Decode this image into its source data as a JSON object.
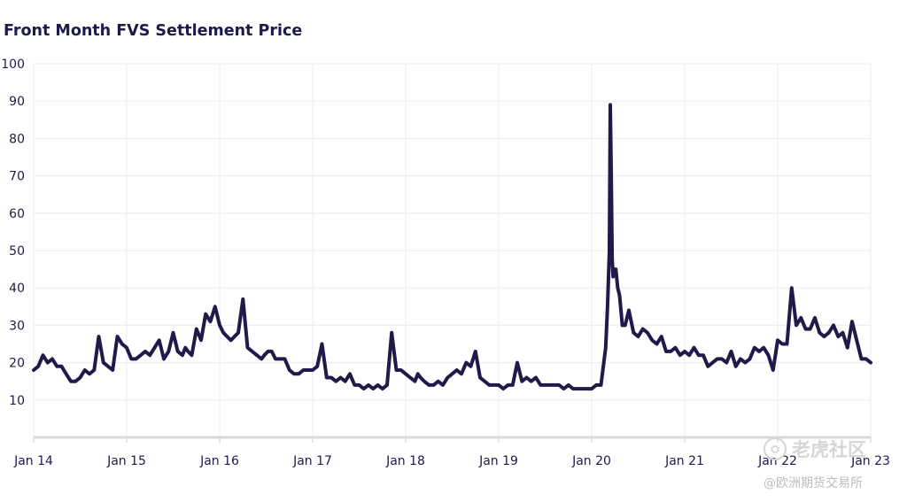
{
  "chart_data": {
    "type": "line",
    "title": "Front Month FVS Settlement Price",
    "xlabel": "",
    "ylabel": "",
    "ylim": [
      0,
      100
    ],
    "yticks": [
      10,
      20,
      30,
      40,
      50,
      60,
      70,
      80,
      90,
      100
    ],
    "xlim": [
      2014.0,
      2023.0
    ],
    "xticks": [
      {
        "label": "Jan 14",
        "value": 2014.0
      },
      {
        "label": "Jan 15",
        "value": 2015.0
      },
      {
        "label": "Jan 16",
        "value": 2016.0
      },
      {
        "label": "Jan 17",
        "value": 2017.0
      },
      {
        "label": "Jan 18",
        "value": 2018.0
      },
      {
        "label": "Jan 19",
        "value": 2019.0
      },
      {
        "label": "Jan 20",
        "value": 2020.0
      },
      {
        "label": "Jan 21",
        "value": 2021.0
      },
      {
        "label": "Jan 22",
        "value": 2022.0
      },
      {
        "label": "Jan 23",
        "value": 2023.0
      }
    ],
    "grid": true,
    "line_color": "#1f1a4a",
    "series": [
      {
        "name": "Front Month FVS Settlement Price",
        "x": [
          2014.0,
          2014.05,
          2014.1,
          2014.15,
          2014.2,
          2014.25,
          2014.3,
          2014.35,
          2014.4,
          2014.45,
          2014.5,
          2014.55,
          2014.6,
          2014.65,
          2014.7,
          2014.75,
          2014.8,
          2014.85,
          2014.9,
          2014.95,
          2015.0,
          2015.05,
          2015.1,
          2015.15,
          2015.2,
          2015.25,
          2015.3,
          2015.35,
          2015.4,
          2015.45,
          2015.5,
          2015.55,
          2015.6,
          2015.63,
          2015.66,
          2015.7,
          2015.75,
          2015.8,
          2015.85,
          2015.9,
          2015.95,
          2016.0,
          2016.04,
          2016.08,
          2016.12,
          2016.16,
          2016.2,
          2016.25,
          2016.3,
          2016.35,
          2016.4,
          2016.45,
          2016.48,
          2016.52,
          2016.56,
          2016.6,
          2016.65,
          2016.7,
          2016.75,
          2016.8,
          2016.85,
          2016.9,
          2016.95,
          2017.0,
          2017.05,
          2017.1,
          2017.15,
          2017.2,
          2017.25,
          2017.3,
          2017.35,
          2017.4,
          2017.45,
          2017.5,
          2017.55,
          2017.6,
          2017.65,
          2017.7,
          2017.75,
          2017.8,
          2017.85,
          2017.9,
          2017.95,
          2018.0,
          2018.05,
          2018.1,
          2018.13,
          2018.16,
          2018.2,
          2018.25,
          2018.3,
          2018.35,
          2018.4,
          2018.45,
          2018.5,
          2018.55,
          2018.6,
          2018.65,
          2018.7,
          2018.75,
          2018.8,
          2018.85,
          2018.9,
          2018.95,
          2019.0,
          2019.05,
          2019.1,
          2019.15,
          2019.2,
          2019.25,
          2019.3,
          2019.35,
          2019.4,
          2019.45,
          2019.5,
          2019.55,
          2019.6,
          2019.65,
          2019.7,
          2019.75,
          2019.8,
          2019.85,
          2019.9,
          2019.95,
          2020.0,
          2020.05,
          2020.1,
          2020.15,
          2020.17,
          2020.19,
          2020.2,
          2020.21,
          2020.22,
          2020.23,
          2020.24,
          2020.26,
          2020.28,
          2020.3,
          2020.33,
          2020.36,
          2020.4,
          2020.45,
          2020.5,
          2020.55,
          2020.6,
          2020.65,
          2020.7,
          2020.75,
          2020.8,
          2020.85,
          2020.9,
          2020.95,
          2021.0,
          2021.05,
          2021.1,
          2021.15,
          2021.2,
          2021.25,
          2021.3,
          2021.35,
          2021.4,
          2021.45,
          2021.5,
          2021.55,
          2021.6,
          2021.65,
          2021.7,
          2021.75,
          2021.8,
          2021.85,
          2021.9,
          2021.95,
          2022.0,
          2022.05,
          2022.1,
          2022.15,
          2022.2,
          2022.25,
          2022.3,
          2022.35,
          2022.4,
          2022.45,
          2022.5,
          2022.55,
          2022.6,
          2022.65,
          2022.7,
          2022.75,
          2022.8,
          2022.85,
          2022.9,
          2022.95,
          2023.0
        ],
        "values": [
          18,
          19,
          22,
          20,
          21,
          19,
          19,
          17,
          15,
          15,
          16,
          18,
          17,
          18,
          27,
          20,
          19,
          18,
          27,
          25,
          24,
          21,
          21,
          22,
          23,
          22,
          24,
          26,
          21,
          23,
          28,
          23,
          22,
          24,
          23,
          22,
          29,
          26,
          33,
          31,
          35,
          30,
          28,
          27,
          26,
          27,
          28,
          37,
          24,
          23,
          22,
          21,
          22,
          23,
          23,
          21,
          21,
          21,
          18,
          17,
          17,
          18,
          18,
          18,
          19,
          25,
          16,
          16,
          15,
          16,
          15,
          17,
          14,
          14,
          13,
          14,
          13,
          14,
          13,
          14,
          28,
          18,
          18,
          17,
          16,
          15,
          17,
          16,
          15,
          14,
          14,
          15,
          14,
          16,
          17,
          18,
          17,
          20,
          19,
          23,
          16,
          15,
          14,
          14,
          14,
          13,
          14,
          14,
          20,
          15,
          16,
          15,
          16,
          14,
          14,
          14,
          14,
          14,
          13,
          14,
          13,
          13,
          13,
          13,
          13,
          14,
          14,
          24,
          35,
          50,
          89,
          70,
          48,
          43,
          45,
          45,
          40,
          38,
          30,
          30,
          34,
          28,
          27,
          29,
          28,
          26,
          25,
          27,
          23,
          23,
          24,
          22,
          23,
          22,
          24,
          22,
          22,
          19,
          20,
          21,
          21,
          20,
          23,
          19,
          21,
          20,
          21,
          24,
          23,
          24,
          22,
          18,
          26,
          25,
          25,
          40,
          30,
          32,
          29,
          29,
          32,
          28,
          27,
          28,
          30,
          27,
          28,
          24,
          31,
          26,
          21,
          21,
          20
        ]
      }
    ]
  },
  "watermark": {
    "primary": "老虎社区",
    "secondary": "@欧洲期货交易所",
    "glyph": "⛭"
  }
}
